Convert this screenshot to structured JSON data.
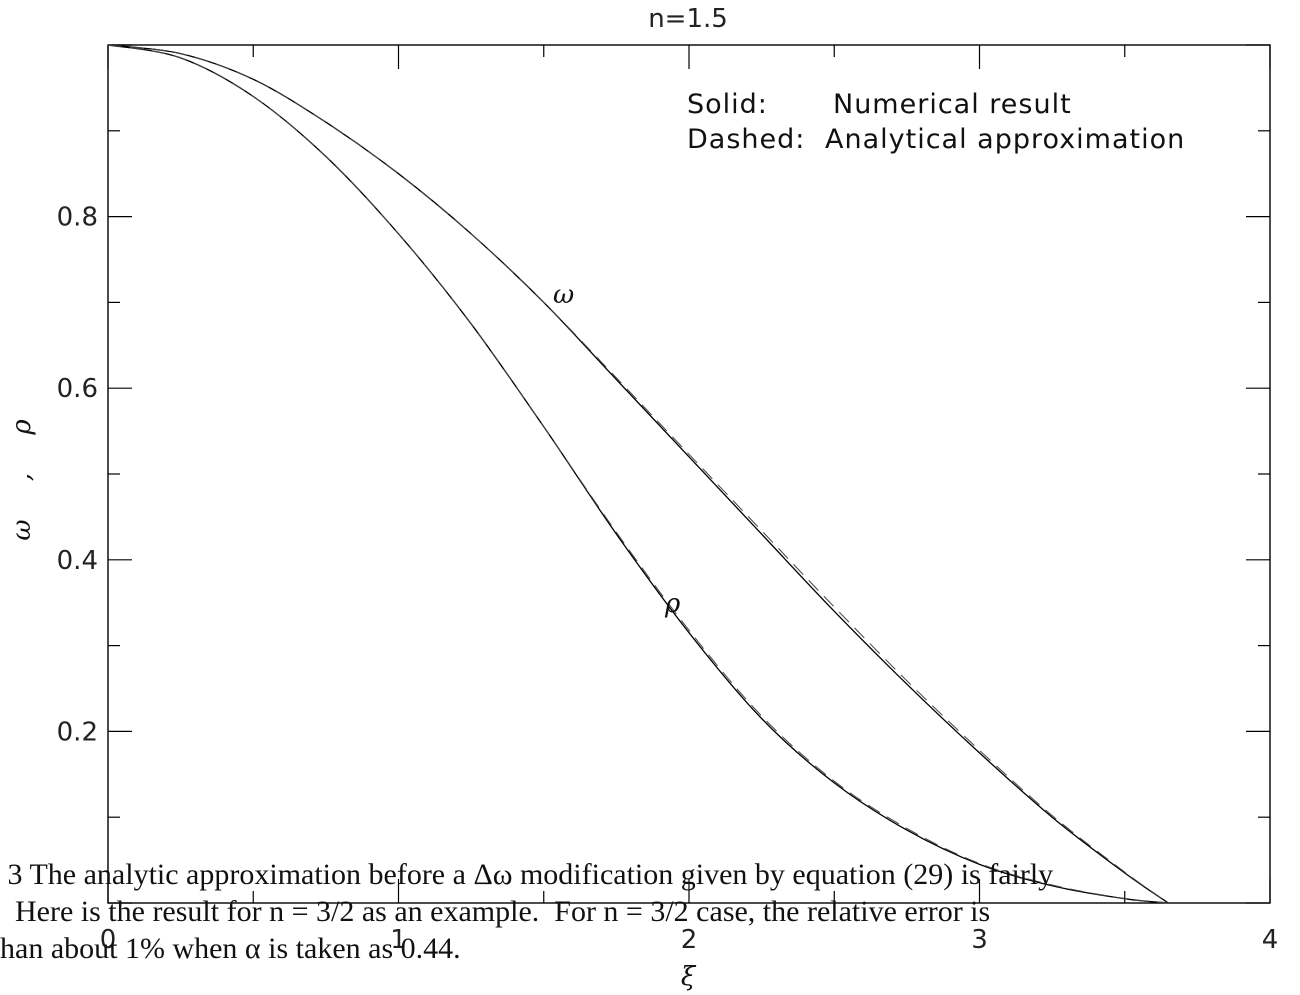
{
  "chart_data": {
    "type": "line",
    "title": "n=1.5",
    "xlabel": "ξ",
    "ylabel_parts": [
      "ω",
      ",",
      "ρ"
    ],
    "xlim": [
      0,
      4
    ],
    "ylim": [
      0,
      1
    ],
    "x_ticks": [
      "0",
      "1",
      "2",
      "3",
      "4"
    ],
    "y_ticks": [
      "0.2",
      "0.4",
      "0.6",
      "0.8"
    ],
    "legend": {
      "placement": "top-right",
      "lines": [
        {
          "key": "Solid:",
          "text": "Numerical result"
        },
        {
          "key": "Dashed:",
          "text": "Analytical approximation"
        }
      ]
    },
    "annotations": [
      {
        "label": "ω",
        "x": 1.5,
        "y": 0.705
      },
      {
        "label": "ρ",
        "x": 1.92,
        "y": 0.345
      }
    ],
    "series": [
      {
        "name": "ω",
        "style": "solid",
        "x": [
          0,
          0.25,
          0.5,
          0.75,
          1.0,
          1.25,
          1.5,
          1.75,
          2.0,
          2.25,
          2.5,
          2.75,
          3.0,
          3.25,
          3.5,
          3.65
        ],
        "y": [
          1.0,
          0.99,
          0.96,
          0.91,
          0.85,
          0.78,
          0.7,
          0.61,
          0.52,
          0.43,
          0.34,
          0.255,
          0.175,
          0.1,
          0.035,
          0.0
        ]
      },
      {
        "name": "ω",
        "style": "dashed",
        "x": [
          0,
          0.25,
          0.5,
          0.75,
          1.0,
          1.25,
          1.5,
          1.75,
          2.0,
          2.25,
          2.5,
          2.75,
          3.0,
          3.25,
          3.5,
          3.65
        ],
        "y": [
          1.0,
          0.99,
          0.96,
          0.91,
          0.85,
          0.78,
          0.7,
          0.612,
          0.523,
          0.434,
          0.345,
          0.259,
          0.178,
          0.102,
          0.036,
          0.0
        ]
      },
      {
        "name": "ρ",
        "style": "solid",
        "x": [
          0,
          0.25,
          0.5,
          0.75,
          1.0,
          1.25,
          1.5,
          1.75,
          2.0,
          2.25,
          2.5,
          2.75,
          3.0,
          3.25,
          3.5,
          3.65
        ],
        "y": [
          1.0,
          0.985,
          0.94,
          0.87,
          0.78,
          0.675,
          0.555,
          0.43,
          0.315,
          0.215,
          0.14,
          0.085,
          0.045,
          0.02,
          0.005,
          0.0
        ]
      },
      {
        "name": "ρ",
        "style": "dashed",
        "x": [
          0,
          0.25,
          0.5,
          0.75,
          1.0,
          1.25,
          1.5,
          1.75,
          2.0,
          2.25,
          2.5,
          2.75,
          3.0,
          3.25,
          3.5,
          3.65
        ],
        "y": [
          1.0,
          0.985,
          0.94,
          0.87,
          0.78,
          0.675,
          0.555,
          0.432,
          0.318,
          0.218,
          0.142,
          0.087,
          0.046,
          0.021,
          0.005,
          0.0
        ]
      }
    ]
  },
  "caption": {
    "lines": [
      " 3 The analytic approximation before a Δω modification given by equation (29) is fairly",
      "  Here is the result for n = 3/2 as an example.  For n = 3/2 case, the relative error is",
      "han about 1% when α is taken as 0.44."
    ]
  }
}
